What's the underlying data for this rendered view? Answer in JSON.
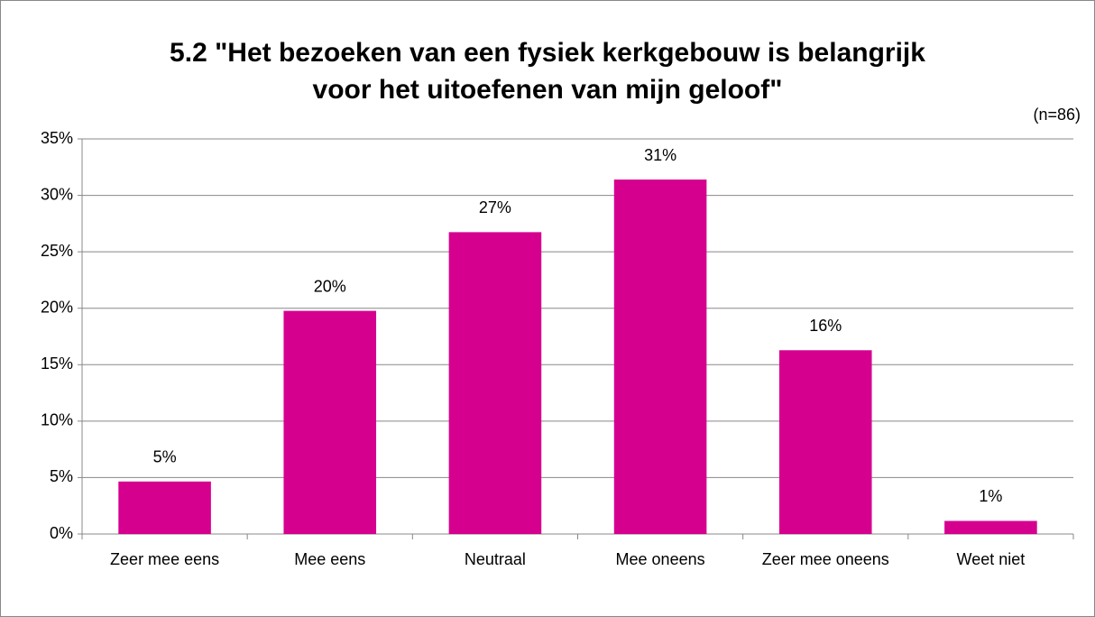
{
  "chart_data": {
    "type": "bar",
    "title": [
      "5.2 \"Het bezoeken van een fysiek kerkgebouw is belangrijk",
      "voor het uitoefenen van mijn geloof\""
    ],
    "annotation": "(n=86)",
    "categories": [
      "Zeer mee eens",
      "Mee eens",
      "Neutraal",
      "Mee oneens",
      "Zeer mee oneens",
      "Weet niet"
    ],
    "values": [
      4.65,
      19.77,
      26.74,
      31.4,
      16.28,
      1.16
    ],
    "value_labels": [
      "5%",
      "20%",
      "27%",
      "31%",
      "16%",
      "1%"
    ],
    "color": "#d6008f",
    "ylim": [
      0,
      35
    ],
    "yticks": [
      {
        "value": 0,
        "label": "0%"
      },
      {
        "value": 5,
        "label": "5%"
      },
      {
        "value": 10,
        "label": "10%"
      },
      {
        "value": 15,
        "label": "15%"
      },
      {
        "value": 20,
        "label": "20%"
      },
      {
        "value": 25,
        "label": "25%"
      },
      {
        "value": 30,
        "label": "30%"
      },
      {
        "value": 35,
        "label": "35%"
      }
    ],
    "grid": true
  }
}
